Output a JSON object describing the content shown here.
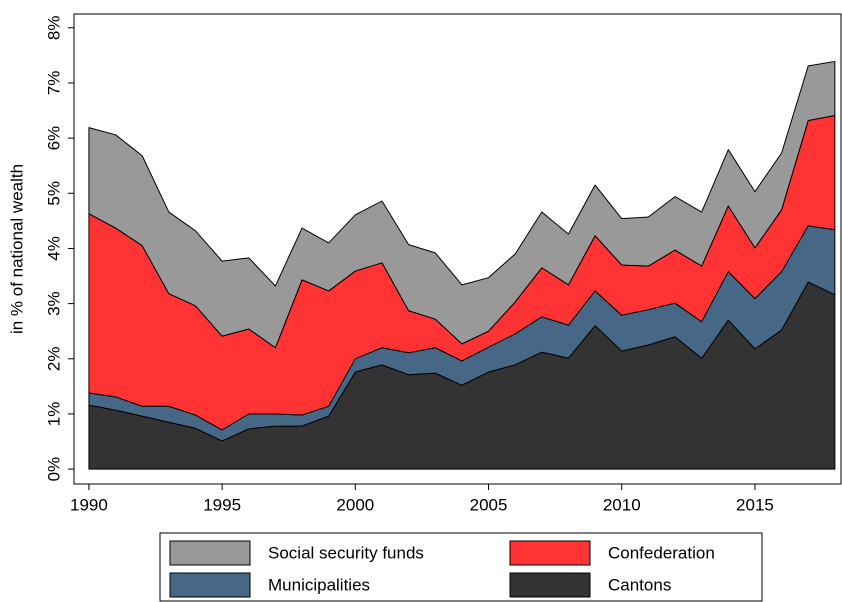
{
  "chart_data": {
    "type": "stacked_area",
    "y_label": "in % of national wealth",
    "x": [
      1990,
      1991,
      1992,
      1993,
      1994,
      1995,
      1996,
      1997,
      1998,
      1999,
      2000,
      2001,
      2002,
      2003,
      2004,
      2005,
      2006,
      2007,
      2008,
      2009,
      2010,
      2011,
      2012,
      2013,
      2014,
      2015,
      2016,
      2017,
      2018
    ],
    "series": [
      {
        "name": "Cantons",
        "color": "#333333",
        "values": [
          1.16,
          1.07,
          0.96,
          0.85,
          0.74,
          0.51,
          0.73,
          0.78,
          0.78,
          0.96,
          1.76,
          1.89,
          1.71,
          1.74,
          1.52,
          1.76,
          1.89,
          2.12,
          2.01,
          2.6,
          2.14,
          2.25,
          2.4,
          2.01,
          2.7,
          2.18,
          2.52,
          3.39,
          3.16
        ]
      },
      {
        "name": "Municipalities",
        "color": "#466886",
        "values": [
          0.22,
          0.24,
          0.18,
          0.29,
          0.24,
          0.2,
          0.27,
          0.22,
          0.2,
          0.18,
          0.24,
          0.31,
          0.4,
          0.46,
          0.44,
          0.45,
          0.56,
          0.64,
          0.6,
          0.63,
          0.65,
          0.64,
          0.61,
          0.66,
          0.88,
          0.91,
          1.06,
          1.02,
          1.18
        ]
      },
      {
        "name": "Confederation",
        "color": "#ff3333",
        "values": [
          3.25,
          3.06,
          2.91,
          2.04,
          1.98,
          1.7,
          1.54,
          1.2,
          2.45,
          2.09,
          1.59,
          1.54,
          0.76,
          0.52,
          0.31,
          0.29,
          0.58,
          0.89,
          0.73,
          1.0,
          0.91,
          0.79,
          0.96,
          1.01,
          1.19,
          0.92,
          1.12,
          1.91,
          2.07
        ]
      },
      {
        "name": "Social security funds",
        "color": "#999999",
        "values": [
          1.56,
          1.69,
          1.63,
          1.48,
          1.36,
          1.36,
          1.29,
          1.12,
          0.94,
          0.87,
          1.02,
          1.12,
          1.2,
          1.2,
          1.07,
          0.97,
          0.87,
          1.01,
          0.92,
          0.92,
          0.84,
          0.89,
          0.97,
          0.98,
          1.02,
          1.02,
          1.03,
          0.99,
          0.98
        ]
      }
    ],
    "xlim": [
      1989.44,
      2018.23
    ],
    "xticks": [
      1990,
      1995,
      2000,
      2005,
      2010,
      2015
    ],
    "ylim": [
      -0.27,
      8.25
    ],
    "yticks": [
      {
        "value": 0,
        "label": "0%"
      },
      {
        "value": 1,
        "label": "1%"
      },
      {
        "value": 2,
        "label": "2%"
      },
      {
        "value": 3,
        "label": "3%"
      },
      {
        "value": 4,
        "label": "4%"
      },
      {
        "value": 5,
        "label": "5%"
      },
      {
        "value": 6,
        "label": "6%"
      },
      {
        "value": 7,
        "label": "7%"
      },
      {
        "value": 8,
        "label": "8%"
      }
    ],
    "legend": "bottom"
  }
}
